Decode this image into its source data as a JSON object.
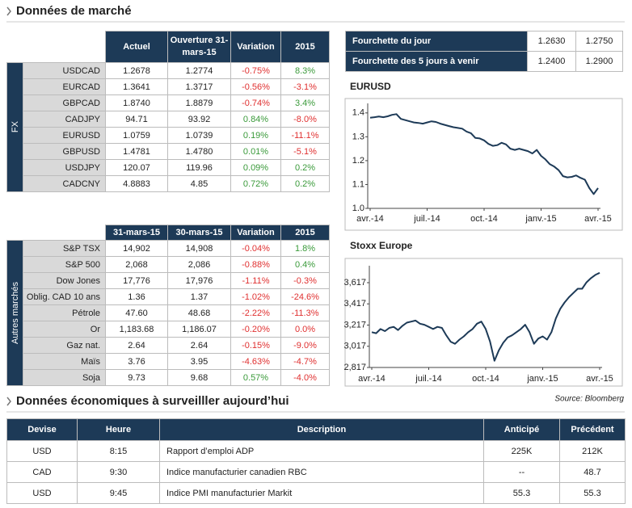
{
  "header": {
    "title": "Données de marché"
  },
  "fx_table": {
    "group": "FX",
    "columns": [
      "Actuel",
      "Ouverture 31-mars-15",
      "Variation",
      "2015"
    ],
    "rows": [
      {
        "label": "USDCAD",
        "cells": [
          "1.2678",
          "1.2774",
          "-0.75%",
          "8.3%"
        ]
      },
      {
        "label": "EURCAD",
        "cells": [
          "1.3641",
          "1.3717",
          "-0.56%",
          "-3.1%"
        ]
      },
      {
        "label": "GBPCAD",
        "cells": [
          "1.8740",
          "1.8879",
          "-0.74%",
          "3.4%"
        ]
      },
      {
        "label": "CADJPY",
        "cells": [
          "94.71",
          "93.92",
          "0.84%",
          "-8.0%"
        ]
      },
      {
        "label": "EURUSD",
        "cells": [
          "1.0759",
          "1.0739",
          "0.19%",
          "-11.1%"
        ]
      },
      {
        "label": "GBPUSD",
        "cells": [
          "1.4781",
          "1.4780",
          "0.01%",
          "-5.1%"
        ]
      },
      {
        "label": "USDJPY",
        "cells": [
          "120.07",
          "119.96",
          "0.09%",
          "0.2%"
        ]
      },
      {
        "label": "CADCNY",
        "cells": [
          "4.8883",
          "4.85",
          "0.72%",
          "0.2%"
        ]
      }
    ]
  },
  "range_table": {
    "rows": [
      {
        "label": "Fourchette du jour",
        "cells": [
          "1.2630",
          "1.2750"
        ]
      },
      {
        "label": "Fourchette des 5 jours à venir",
        "cells": [
          "1.2400",
          "1.2900"
        ]
      }
    ]
  },
  "markets_table": {
    "group": "Autres marchés",
    "columns": [
      "31-mars-15",
      "30-mars-15",
      "Variation",
      "2015"
    ],
    "rows": [
      {
        "label": "S&P TSX",
        "cells": [
          "14,902",
          "14,908",
          "-0.04%",
          "1.8%"
        ]
      },
      {
        "label": "S&P 500",
        "cells": [
          "2,068",
          "2,086",
          "-0.88%",
          "0.4%"
        ]
      },
      {
        "label": "Dow Jones",
        "cells": [
          "17,776",
          "17,976",
          "-1.11%",
          "-0.3%"
        ]
      },
      {
        "label": "Oblig. CAD 10 ans",
        "cells": [
          "1.36",
          "1.37",
          "-1.02%",
          "-24.6%"
        ]
      },
      {
        "label": "Pétrole",
        "cells": [
          "47.60",
          "48.68",
          "-2.22%",
          "-11.3%"
        ]
      },
      {
        "label": "Or",
        "cells": [
          "1,183.68",
          "1,186.07",
          "-0.20%",
          "0.0%"
        ]
      },
      {
        "label": "Gaz nat.",
        "cells": [
          "2.64",
          "2.64",
          "-0.15%",
          "-9.0%"
        ]
      },
      {
        "label": "Maïs",
        "cells": [
          "3.76",
          "3.95",
          "-4.63%",
          "-4.7%"
        ]
      },
      {
        "label": "Soja",
        "cells": [
          "9.73",
          "9.68",
          "0.57%",
          "-4.0%"
        ]
      }
    ]
  },
  "chart_data": [
    {
      "type": "line",
      "title": "EURUSD",
      "color": "#1d3a57",
      "categories": [
        "avr.-14",
        null,
        null,
        null,
        null,
        null,
        null,
        null,
        null,
        null,
        null,
        null,
        null,
        "juil.-14",
        null,
        null,
        null,
        null,
        null,
        null,
        null,
        null,
        null,
        null,
        null,
        null,
        "oct.-14",
        null,
        null,
        null,
        null,
        null,
        null,
        null,
        null,
        null,
        null,
        null,
        null,
        "janv.-15",
        null,
        null,
        null,
        null,
        null,
        null,
        null,
        null,
        null,
        null,
        null,
        null,
        "avr.-15"
      ],
      "values": [
        1.38,
        1.382,
        1.385,
        1.382,
        1.386,
        1.392,
        1.395,
        1.375,
        1.37,
        1.365,
        1.36,
        1.358,
        1.355,
        1.36,
        1.365,
        1.362,
        1.355,
        1.35,
        1.345,
        1.34,
        1.337,
        1.334,
        1.322,
        1.315,
        1.295,
        1.293,
        1.285,
        1.27,
        1.262,
        1.265,
        1.275,
        1.268,
        1.25,
        1.245,
        1.25,
        1.245,
        1.24,
        1.23,
        1.245,
        1.22,
        1.205,
        1.185,
        1.175,
        1.16,
        1.135,
        1.13,
        1.132,
        1.138,
        1.128,
        1.12,
        1.085,
        1.06,
        1.085
      ],
      "ylim": [
        1,
        1.44
      ],
      "yticks": [
        {
          "value": 1,
          "label": "1.0"
        },
        1.1,
        1.2,
        1.3,
        1.4
      ],
      "grid": false
    },
    {
      "type": "line",
      "title": "Stoxx Europe",
      "color": "#1d3a57",
      "categories": [
        "avr.-14",
        null,
        null,
        null,
        null,
        null,
        null,
        null,
        null,
        null,
        null,
        null,
        null,
        "juil.-14",
        null,
        null,
        null,
        null,
        null,
        null,
        null,
        null,
        null,
        null,
        null,
        null,
        "oct.-14",
        null,
        null,
        null,
        null,
        null,
        null,
        null,
        null,
        null,
        null,
        null,
        null,
        "janv.-15",
        null,
        null,
        null,
        null,
        null,
        null,
        null,
        null,
        null,
        null,
        null,
        null,
        "avr.-15"
      ],
      "values": [
        3150,
        3140,
        3180,
        3160,
        3190,
        3200,
        3170,
        3210,
        3240,
        3250,
        3260,
        3230,
        3220,
        3200,
        3180,
        3200,
        3190,
        3120,
        3060,
        3040,
        3080,
        3110,
        3150,
        3180,
        3230,
        3250,
        3180,
        3060,
        2880,
        2980,
        3050,
        3100,
        3120,
        3150,
        3180,
        3220,
        3150,
        3040,
        3090,
        3110,
        3080,
        3150,
        3280,
        3370,
        3430,
        3480,
        3520,
        3560,
        3560,
        3620,
        3660,
        3690,
        3710
      ],
      "ylim": [
        2817,
        3777
      ],
      "yticks": [
        {
          "value": 2817,
          "label": "2,817"
        },
        {
          "value": 3017,
          "label": "3,017"
        },
        {
          "value": 3217,
          "label": "3,217"
        },
        {
          "value": 3417,
          "label": "3,417"
        },
        {
          "value": 3617,
          "label": "3,617"
        }
      ],
      "grid": false
    }
  ],
  "source": "Source: Bloomberg",
  "economic": {
    "title": "Données économiques à surveilller aujourd’hui",
    "columns": [
      "Devise",
      "Heure",
      "Description",
      "Anticipé",
      "Précédent"
    ],
    "rows": [
      [
        "USD",
        "8:15",
        "Rapport d’emploi ADP",
        "225K",
        "212K"
      ],
      [
        "CAD",
        "9:30",
        "Indice manufacturier canadien RBC",
        "--",
        "48.7"
      ],
      [
        "USD",
        "9:45",
        "Indice PMI manufacturier  Markit",
        "55.3",
        "55.3"
      ]
    ]
  }
}
